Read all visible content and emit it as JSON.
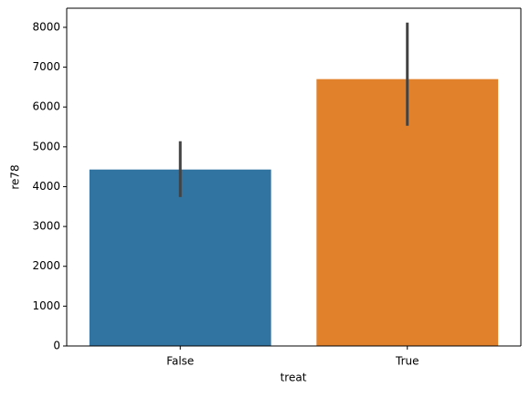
{
  "chart_data": {
    "type": "bar",
    "x_label": "treat",
    "y_label": "re78",
    "categories": [
      "False",
      "True"
    ],
    "values": [
      4430,
      6700
    ],
    "ci_low": [
      3740,
      5530
    ],
    "ci_high": [
      5140,
      8120
    ],
    "colors": [
      "#3274a1",
      "#e1812c"
    ],
    "ylim": [
      0,
      8480
    ],
    "yticks": [
      0,
      1000,
      2000,
      3000,
      4000,
      5000,
      6000,
      7000,
      8000
    ],
    "grid": false
  }
}
